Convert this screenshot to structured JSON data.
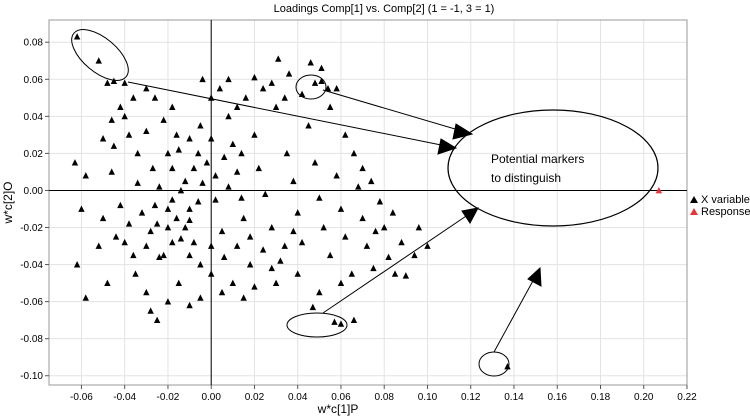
{
  "chart_data": {
    "type": "scatter",
    "title": "Loadings Comp[1] vs. Comp[2] (1 = -1, 3 = 1)",
    "xlabel": "w*c[1]P",
    "ylabel": "w*c[2]O",
    "xlim": [
      -0.075,
      0.22
    ],
    "ylim": [
      -0.105,
      0.092
    ],
    "x_ticks": [
      -0.06,
      -0.04,
      -0.02,
      0.0,
      0.02,
      0.04,
      0.06,
      0.08,
      0.1,
      0.12,
      0.14,
      0.16,
      0.18,
      0.2,
      0.22
    ],
    "x_tick_labels": [
      "-0.06",
      "-0.04",
      "-0.02",
      "0.00",
      "0.02",
      "0.04",
      "0.06",
      "0.08",
      "0.10",
      "0.12",
      "0.14",
      "0.16",
      "0.18",
      "0.20",
      "0.22"
    ],
    "y_ticks": [
      0.08,
      0.06,
      0.04,
      0.02,
      0.0,
      -0.02,
      -0.04,
      -0.06,
      -0.08,
      -0.1
    ],
    "y_tick_labels": [
      "0.08",
      "0.06",
      "0.04",
      "0.02",
      "0.00",
      "-0.02",
      "-0.04",
      "-0.06",
      "-0.08",
      "-0.10"
    ],
    "grid": true,
    "legend_position": "right",
    "series": [
      {
        "name": "X variables",
        "color": "#000000",
        "marker": "triangle",
        "points": [
          [
            -0.062,
            0.083
          ],
          [
            -0.052,
            0.07
          ],
          [
            -0.048,
            0.058
          ],
          [
            -0.045,
            0.059
          ],
          [
            -0.04,
            0.058
          ],
          [
            0.048,
            0.058
          ],
          [
            0.051,
            0.059
          ],
          [
            0.054,
            0.055
          ],
          [
            0.058,
            0.055
          ],
          [
            0.046,
            0.069
          ],
          [
            0.051,
            0.066
          ],
          [
            0.031,
            0.071
          ],
          [
            0.036,
            0.063
          ],
          [
            0.02,
            0.061
          ],
          [
            -0.058,
            0.008
          ],
          [
            -0.063,
            0.015
          ],
          [
            -0.06,
            -0.01
          ],
          [
            -0.062,
            -0.04
          ],
          [
            -0.058,
            -0.058
          ],
          [
            -0.052,
            -0.03
          ],
          [
            -0.048,
            -0.05
          ],
          [
            -0.045,
            0.024
          ],
          [
            -0.04,
            0.04
          ],
          [
            -0.036,
            0.05
          ],
          [
            -0.03,
            0.032
          ],
          [
            -0.027,
            0.012
          ],
          [
            -0.025,
            -0.018
          ],
          [
            -0.022,
            -0.035
          ],
          [
            -0.02,
            -0.06
          ],
          [
            -0.018,
            0.045
          ],
          [
            -0.015,
            0.022
          ],
          [
            -0.012,
            0.005
          ],
          [
            -0.01,
            -0.01
          ],
          [
            -0.008,
            -0.028
          ],
          [
            -0.005,
            0.035
          ],
          [
            -0.002,
            0.015
          ],
          [
            0.002,
            -0.005
          ],
          [
            0.005,
            -0.022
          ],
          [
            0.008,
            0.04
          ],
          [
            0.01,
            0.025
          ],
          [
            0.012,
            0.01
          ],
          [
            0.015,
            -0.015
          ],
          [
            0.018,
            -0.04
          ],
          [
            0.02,
            0.03
          ],
          [
            0.022,
            0.012
          ],
          [
            0.025,
            -0.002
          ],
          [
            0.028,
            -0.02
          ],
          [
            0.03,
            0.045
          ],
          [
            0.032,
            -0.038
          ],
          [
            0.035,
            0.02
          ],
          [
            0.038,
            0.005
          ],
          [
            0.04,
            -0.012
          ],
          [
            0.042,
            -0.028
          ],
          [
            0.045,
            0.035
          ],
          [
            0.048,
            0.015
          ],
          [
            0.05,
            -0.004
          ],
          [
            0.052,
            -0.02
          ],
          [
            0.055,
            -0.035
          ],
          [
            0.058,
            0.008
          ],
          [
            0.06,
            -0.01
          ],
          [
            0.062,
            -0.025
          ],
          [
            0.065,
            -0.045
          ],
          [
            0.068,
            0.002
          ],
          [
            0.07,
            -0.015
          ],
          [
            0.072,
            -0.03
          ],
          [
            0.075,
            -0.042
          ],
          [
            0.078,
            -0.006
          ],
          [
            0.08,
            -0.02
          ],
          [
            0.082,
            -0.036
          ],
          [
            0.085,
            -0.045
          ],
          [
            0.088,
            -0.028
          ],
          [
            0.09,
            -0.046
          ],
          [
            -0.035,
            -0.045
          ],
          [
            -0.03,
            -0.055
          ],
          [
            -0.028,
            -0.065
          ],
          [
            -0.025,
            -0.07
          ],
          [
            -0.015,
            -0.05
          ],
          [
            -0.01,
            -0.062
          ],
          [
            -0.005,
            -0.058
          ],
          [
            0.0,
            -0.045
          ],
          [
            0.005,
            -0.055
          ],
          [
            0.01,
            -0.05
          ],
          [
            0.015,
            -0.058
          ],
          [
            0.02,
            -0.052
          ],
          [
            0.03,
            -0.05
          ],
          [
            0.04,
            -0.045
          ],
          [
            0.05,
            -0.055
          ],
          [
            0.06,
            -0.05
          ],
          [
            0.047,
            -0.063
          ],
          [
            -0.02,
            -0.01
          ],
          [
            -0.018,
            -0.005
          ],
          [
            -0.016,
            -0.015
          ],
          [
            -0.014,
            0.0
          ],
          [
            -0.012,
            -0.02
          ],
          [
            -0.024,
            0.002
          ],
          [
            -0.026,
            -0.008
          ],
          [
            -0.028,
            -0.022
          ],
          [
            -0.032,
            -0.012
          ],
          [
            -0.034,
            0.004
          ],
          [
            -0.038,
            -0.018
          ],
          [
            -0.042,
            -0.008
          ],
          [
            -0.044,
            -0.025
          ],
          [
            -0.046,
            0.01
          ],
          [
            -0.05,
            -0.015
          ],
          [
            -0.02,
            0.02
          ],
          [
            -0.016,
            0.03
          ],
          [
            -0.022,
            0.038
          ],
          [
            -0.026,
            0.05
          ],
          [
            -0.03,
            0.055
          ],
          [
            -0.034,
            0.02
          ],
          [
            -0.038,
            0.03
          ],
          [
            -0.042,
            0.045
          ],
          [
            -0.046,
            0.038
          ],
          [
            -0.05,
            0.028
          ],
          [
            0.0,
            0.05
          ],
          [
            -0.004,
            0.06
          ],
          [
            0.004,
            0.055
          ],
          [
            0.008,
            0.06
          ],
          [
            0.012,
            0.045
          ],
          [
            0.016,
            0.05
          ],
          [
            0.024,
            0.055
          ],
          [
            0.028,
            0.058
          ],
          [
            0.034,
            0.05
          ],
          [
            0.042,
            0.052
          ],
          [
            0.055,
            0.045
          ],
          [
            0.062,
            0.03
          ],
          [
            0.066,
            0.02
          ],
          [
            0.07,
            0.012
          ],
          [
            0.074,
            0.005
          ],
          [
            -0.01,
            0.028
          ],
          [
            -0.006,
            0.02
          ],
          [
            0.0,
            0.028
          ],
          [
            0.006,
            0.018
          ],
          [
            0.014,
            0.02
          ],
          [
            -0.01,
            -0.035
          ],
          [
            -0.005,
            -0.04
          ],
          [
            0.0,
            -0.03
          ],
          [
            0.006,
            -0.036
          ],
          [
            0.012,
            -0.03
          ],
          [
            0.018,
            -0.025
          ],
          [
            0.024,
            -0.032
          ],
          [
            0.028,
            -0.042
          ],
          [
            0.034,
            -0.03
          ],
          [
            0.038,
            -0.022
          ],
          [
            -0.018,
            -0.028
          ],
          [
            -0.024,
            -0.036
          ],
          [
            -0.03,
            -0.03
          ],
          [
            -0.036,
            -0.035
          ],
          [
            -0.04,
            -0.028
          ],
          [
            -0.008,
            0.012
          ],
          [
            -0.004,
            0.004
          ],
          [
            0.002,
            0.008
          ],
          [
            0.008,
            0.002
          ],
          [
            0.014,
            -0.004
          ],
          [
            -0.018,
            0.012
          ],
          [
            -0.02,
            -0.02
          ],
          [
            -0.014,
            -0.026
          ],
          [
            -0.01,
            -0.016
          ],
          [
            -0.006,
            -0.006
          ],
          [
            0.1,
            -0.03
          ],
          [
            0.094,
            -0.035
          ],
          [
            0.096,
            -0.02
          ],
          [
            0.084,
            -0.012
          ],
          [
            0.076,
            -0.022
          ],
          [
            0.057,
            -0.071
          ],
          [
            0.06,
            -0.072
          ],
          [
            0.066,
            -0.07
          ],
          [
            0.137,
            -0.095
          ]
        ]
      },
      {
        "name": "Responses",
        "color": "#e8343a",
        "marker": "triangle",
        "points": [
          [
            0.207,
            0.0
          ]
        ]
      }
    ],
    "annotations": [
      {
        "text_lines": [
          "Potential markers",
          "to distinguish"
        ]
      }
    ]
  }
}
